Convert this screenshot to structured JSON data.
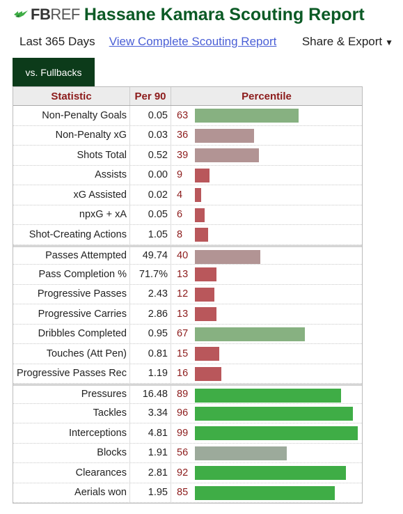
{
  "header": {
    "logo_fb": "FB",
    "logo_ref": "REF",
    "title": "Hassane Kamara Scouting Report"
  },
  "subnav": {
    "period": "Last 365 Days",
    "report_link": "View Complete Scouting Report",
    "share": "Share & Export",
    "share_arrow": "▼"
  },
  "tab": {
    "label": "vs. Fullbacks"
  },
  "table": {
    "headers": [
      "Statistic",
      "Per 90",
      "Percentile"
    ],
    "colors": {
      "high": "#3fad46",
      "mid_high": "#87b181",
      "mid": "#9caa9b",
      "mid_low": "#b29494",
      "low": "#b9575b"
    },
    "rows": [
      {
        "stat": "Non-Penalty Goals",
        "per90": "0.05",
        "pct": 63,
        "color": "#87b181",
        "sep": false
      },
      {
        "stat": "Non-Penalty xG",
        "per90": "0.03",
        "pct": 36,
        "color": "#b29494",
        "sep": false
      },
      {
        "stat": "Shots Total",
        "per90": "0.52",
        "pct": 39,
        "color": "#b29494",
        "sep": false
      },
      {
        "stat": "Assists",
        "per90": "0.00",
        "pct": 9,
        "color": "#b9575b",
        "sep": false
      },
      {
        "stat": "xG Assisted",
        "per90": "0.02",
        "pct": 4,
        "color": "#b9575b",
        "sep": false
      },
      {
        "stat": "npxG + xA",
        "per90": "0.05",
        "pct": 6,
        "color": "#b9575b",
        "sep": false
      },
      {
        "stat": "Shot-Creating Actions",
        "per90": "1.05",
        "pct": 8,
        "color": "#b9575b",
        "sep": false
      },
      {
        "stat": "Passes Attempted",
        "per90": "49.74",
        "pct": 40,
        "color": "#b29494",
        "sep": true
      },
      {
        "stat": "Pass Completion %",
        "per90": "71.7%",
        "pct": 13,
        "color": "#b9575b",
        "sep": false
      },
      {
        "stat": "Progressive Passes",
        "per90": "2.43",
        "pct": 12,
        "color": "#b9575b",
        "sep": false
      },
      {
        "stat": "Progressive Carries",
        "per90": "2.86",
        "pct": 13,
        "color": "#b9575b",
        "sep": false
      },
      {
        "stat": "Dribbles Completed",
        "per90": "0.95",
        "pct": 67,
        "color": "#87b181",
        "sep": false
      },
      {
        "stat": "Touches (Att Pen)",
        "per90": "0.81",
        "pct": 15,
        "color": "#b9575b",
        "sep": false
      },
      {
        "stat": "Progressive Passes Rec",
        "per90": "1.19",
        "pct": 16,
        "color": "#b9575b",
        "sep": false
      },
      {
        "stat": "Pressures",
        "per90": "16.48",
        "pct": 89,
        "color": "#3fad46",
        "sep": true
      },
      {
        "stat": "Tackles",
        "per90": "3.34",
        "pct": 96,
        "color": "#3fad46",
        "sep": false
      },
      {
        "stat": "Interceptions",
        "per90": "4.81",
        "pct": 99,
        "color": "#3fad46",
        "sep": false
      },
      {
        "stat": "Blocks",
        "per90": "1.91",
        "pct": 56,
        "color": "#9caa9b",
        "sep": false
      },
      {
        "stat": "Clearances",
        "per90": "2.81",
        "pct": 92,
        "color": "#3fad46",
        "sep": false
      },
      {
        "stat": "Aerials won",
        "per90": "1.95",
        "pct": 85,
        "color": "#3fad46",
        "sep": false
      }
    ]
  }
}
